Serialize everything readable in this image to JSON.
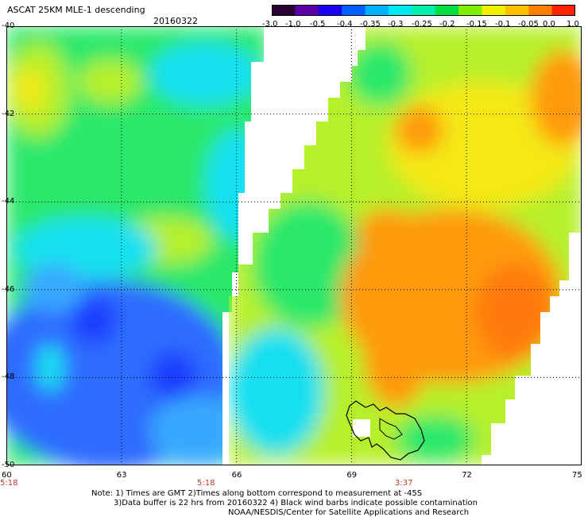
{
  "header": {
    "title": "ASCAT 25KM MLE-1 descending",
    "date": "20160322"
  },
  "colorbar": {
    "ticks": [
      "-3.0",
      "-1.0",
      "-0.5",
      "-0.4",
      "-0.35",
      "-0.3",
      "-0.25",
      "-0.2",
      "-0.15",
      "-0.1",
      "-0.05",
      "0.0",
      "1.0"
    ],
    "colors": [
      "#2a0033",
      "#5a00a8",
      "#1a00f0",
      "#0060ff",
      "#00b0ff",
      "#00e8f0",
      "#00f0b0",
      "#00e040",
      "#80f000",
      "#f0f000",
      "#ffc000",
      "#ff8000",
      "#ff2000"
    ]
  },
  "map": {
    "lat_labels": [
      "-40",
      "-42",
      "-44",
      "-46",
      "-48",
      "-50"
    ],
    "lon_labels": [
      "60",
      "63",
      "66",
      "69",
      "72",
      "75"
    ],
    "time_labels": [
      "5:18",
      "5:18",
      "3:37"
    ],
    "colors": {
      "deep_blue": "#1a3cff",
      "blue": "#2f6cff",
      "light_blue": "#38a8ff",
      "cyan": "#17e0f0",
      "green": "#2ce86a",
      "yellow_green": "#b6f02a",
      "yellow": "#f4e815",
      "orange": "#ff9a10",
      "dark_orange": "#ff7a10",
      "no_data": "#ffffff"
    }
  },
  "notes": [
    "Note: 1) Times are GMT 2)Times along bottom correspond to measurement at -45S",
    "3)Data buffer is 22 hrs from 20160322 4) Black wind barbs indicate possible contamination",
    "NOAA/NESDIS/Center for Satellite Applications and Research"
  ]
}
